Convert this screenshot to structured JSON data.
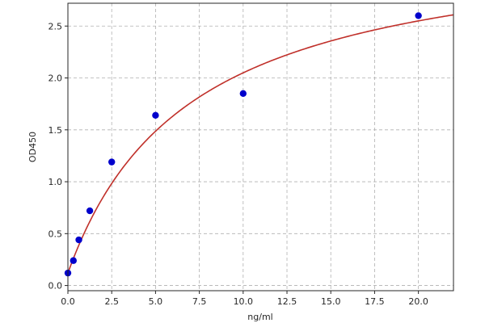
{
  "chart_data": {
    "type": "scatter",
    "title": "",
    "xlabel": "ng/ml",
    "ylabel": "OD450",
    "xlim": [
      0,
      22
    ],
    "ylim": [
      -0.05,
      2.72
    ],
    "xticks": [
      0.0,
      2.5,
      5.0,
      7.5,
      10.0,
      12.5,
      15.0,
      17.5,
      20.0
    ],
    "xtick_labels": [
      "0.0",
      "2.5",
      "5.0",
      "7.5",
      "10.0",
      "12.5",
      "15.0",
      "17.5",
      "20.0"
    ],
    "yticks": [
      0.0,
      0.5,
      1.0,
      1.5,
      2.0,
      2.5
    ],
    "ytick_labels": [
      "0.0",
      "0.5",
      "1.0",
      "1.5",
      "2.0",
      "2.5"
    ],
    "grid": true,
    "series": [
      {
        "kind": "points",
        "color": "#0000cc",
        "x": [
          0,
          0.3125,
          0.625,
          1.25,
          2.5,
          5,
          10,
          20
        ],
        "y": [
          0.12,
          0.24,
          0.44,
          0.72,
          1.19,
          1.64,
          1.85,
          2.6
        ]
      },
      {
        "kind": "fit-curve",
        "color": "#c0302a",
        "model": "4PL",
        "params": {
          "a": 0.12,
          "b": 1.0,
          "c": 7.0,
          "d": 3.4
        }
      }
    ]
  }
}
